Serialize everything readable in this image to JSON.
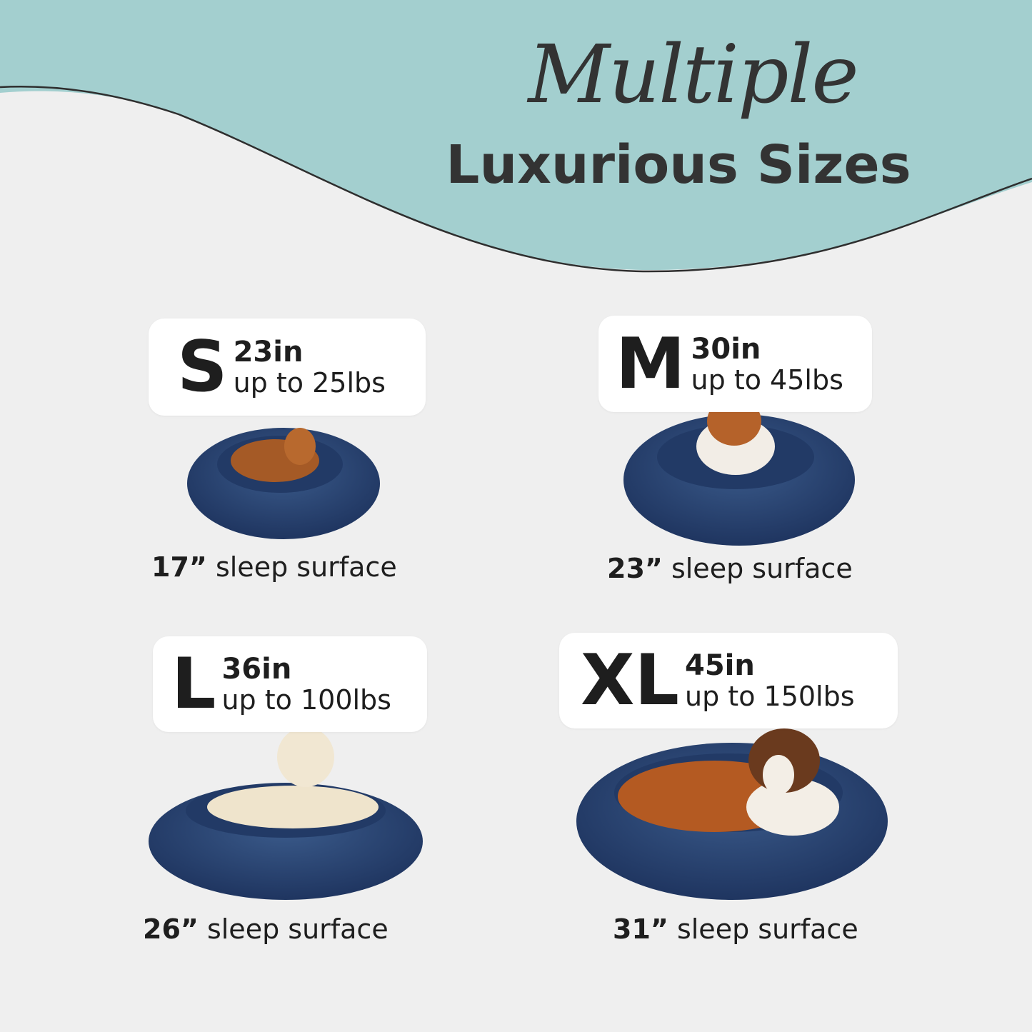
{
  "header": {
    "script_title": "Multiple",
    "title": "Luxurious Sizes"
  },
  "colors": {
    "teal": "#a3cfcf",
    "bed": "#2a4470",
    "card": "#ffffff",
    "text": "#1e1e1e"
  },
  "sizes": [
    {
      "letter": "S",
      "diameter": "23in",
      "weight": "up to 25lbs",
      "surface_value": "17”",
      "surface_label": "sleep surface"
    },
    {
      "letter": "M",
      "diameter": "30in",
      "weight": "up to 45lbs",
      "surface_value": "23”",
      "surface_label": "sleep surface"
    },
    {
      "letter": "L",
      "diameter": "36in",
      "weight": "up to 100lbs",
      "surface_value": "26”",
      "surface_label": "sleep surface"
    },
    {
      "letter": "XL",
      "diameter": "45in",
      "weight": "up to 150lbs",
      "surface_value": "31”",
      "surface_label": "sleep surface"
    }
  ]
}
